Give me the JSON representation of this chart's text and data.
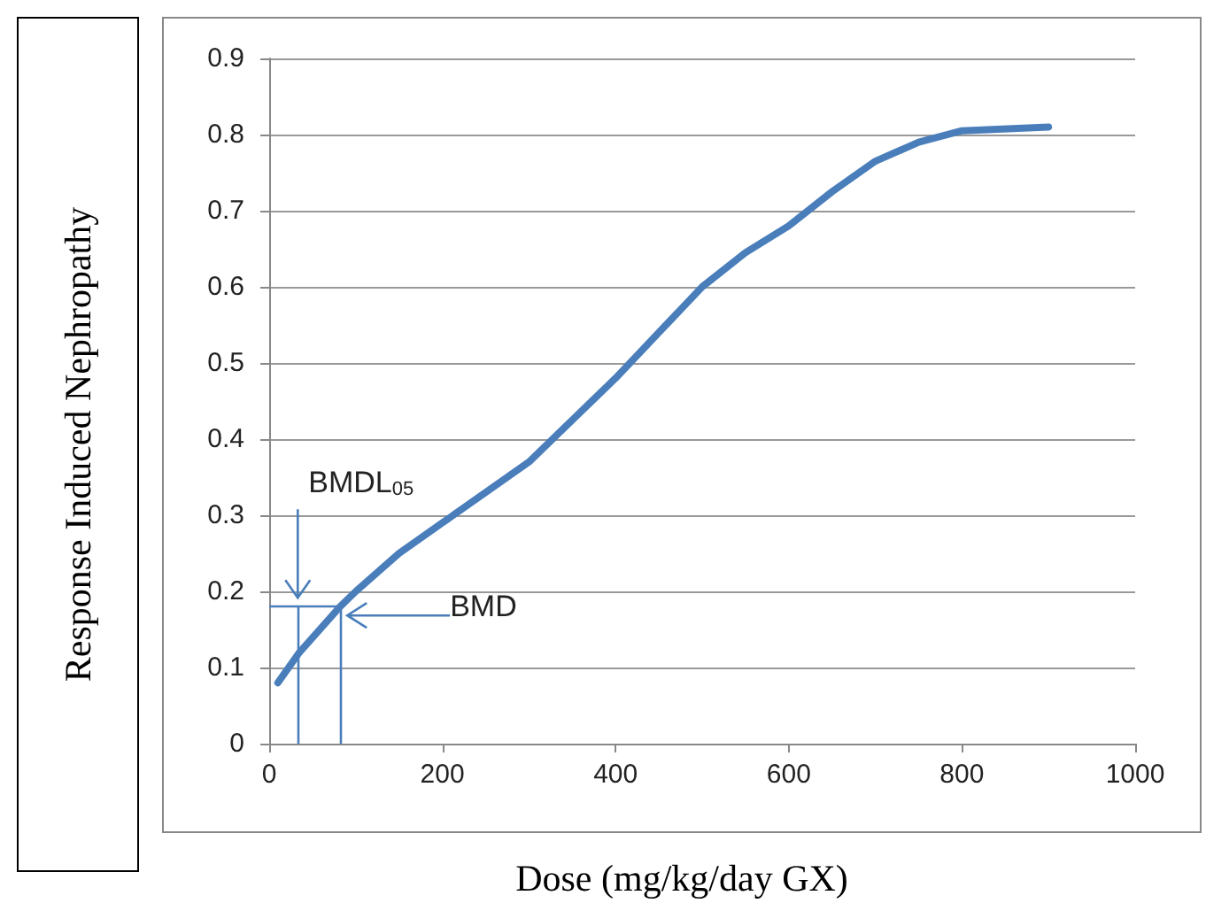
{
  "chart_data": {
    "type": "line",
    "xlabel": "Dose (mg/kg/day GX)",
    "ylabel": "Response Induced Nephropathy",
    "x": [
      10,
      35,
      82,
      100,
      150,
      200,
      300,
      400,
      450,
      500,
      550,
      600,
      650,
      700,
      750,
      800,
      900
    ],
    "series": [
      {
        "color": "#4a7ebb",
        "values": [
          0.08,
          0.12,
          0.18,
          0.2,
          0.25,
          0.29,
          0.37,
          0.48,
          0.54,
          0.6,
          0.645,
          0.68,
          0.725,
          0.765,
          0.79,
          0.805,
          0.81
        ]
      }
    ],
    "xlim": [
      0,
      1000
    ],
    "xticks": [
      0,
      200,
      400,
      600,
      800,
      1000
    ],
    "ylim": [
      0,
      0.9
    ],
    "yticks": [
      0,
      0.1,
      0.2,
      0.3,
      0.4,
      0.5,
      0.6,
      0.7,
      0.8,
      0.9
    ],
    "grid": "y",
    "marker": "none",
    "line_style": "solid",
    "ref_lines": [
      {
        "axis": "x",
        "value": 33,
        "label": "BMDL$_{05}$",
        "color": "#4a7ebb"
      },
      {
        "axis": "x",
        "value": 82,
        "label": "BMD",
        "color": "#4a7ebb"
      },
      {
        "axis": "y",
        "value": 0.18,
        "label": null,
        "color": "#4a7ebb"
      }
    ]
  }
}
